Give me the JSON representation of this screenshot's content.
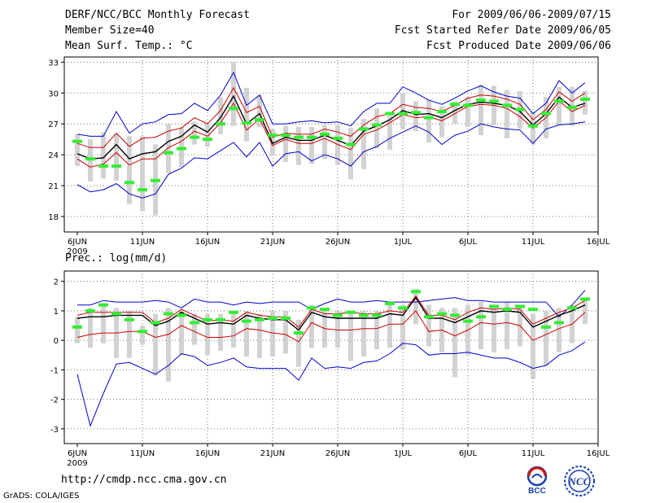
{
  "header": {
    "title": "DERF/NCC/BCC Monthly Forecast",
    "member": "Member Size=40",
    "variable": "Mean Surf. Temp.: °C",
    "range": "For 2009/06/06-2009/07/15",
    "started": "Fcst Started Refer Date 2009/06/05",
    "produced": "Fcst Produced Date 2009/06/06"
  },
  "prec_label": "Prec.: log(mm/d)",
  "footer": {
    "url": "http://cmdp.ncc.cma.gov.cn",
    "grads": "GrADS: COLA/IGES"
  },
  "logos": {
    "bcc": "BCC",
    "ncc": "NCC"
  },
  "colors": {
    "mean": "#000000",
    "inner": "#cc0000",
    "outer": "#0000cc",
    "box": "#d2d2d2",
    "marker": "#33ee33"
  },
  "chart_data": [
    {
      "type": "line",
      "title": "Mean Surf. Temp.: °C",
      "xlabel": "",
      "ylabel": "°C",
      "x": [
        1,
        2,
        3,
        4,
        5,
        6,
        7,
        8,
        9,
        10,
        11,
        12,
        13,
        14,
        15,
        16,
        17,
        18,
        19,
        20,
        21,
        22,
        23,
        24,
        25,
        26,
        27,
        28,
        29,
        30,
        31,
        32,
        33,
        34,
        35,
        36,
        37,
        38,
        39,
        40
      ],
      "x_tick_labels": [
        "6JUN\n2009",
        "11JUN",
        "16JUN",
        "21JUN",
        "26JUN",
        "1JUL",
        "6JUL",
        "11JUL",
        "16JUL"
      ],
      "ylim": [
        16.5,
        33.5
      ],
      "y_ticks": [
        18,
        21,
        24,
        27,
        30,
        33
      ],
      "series": [
        {
          "name": "upper",
          "values": [
            26.0,
            25.8,
            25.8,
            28.2,
            26.1,
            27.0,
            27.2,
            27.9,
            28.0,
            29.0,
            28.3,
            29.8,
            32.0,
            28.8,
            29.8,
            27.0,
            27.0,
            27.2,
            27.3,
            27.1,
            27.2,
            26.8,
            28.2,
            29.0,
            29.0,
            30.6,
            30.0,
            29.3,
            28.9,
            29.5,
            30.2,
            30.7,
            30.1,
            29.7,
            29.5,
            28.0,
            29.0,
            31.2,
            30.0,
            31.0
          ]
        },
        {
          "name": "upper_inner",
          "values": [
            25.1,
            24.7,
            24.7,
            26.1,
            24.8,
            25.6,
            25.7,
            26.3,
            26.6,
            27.6,
            27.0,
            28.3,
            30.5,
            28.1,
            28.7,
            25.7,
            26.1,
            26.0,
            26.0,
            26.5,
            26.2,
            25.8,
            26.9,
            27.7,
            28.0,
            28.9,
            28.6,
            28.5,
            28.2,
            28.8,
            29.5,
            29.8,
            29.7,
            29.4,
            28.9,
            27.4,
            28.4,
            30.1,
            29.2,
            30.0
          ]
        },
        {
          "name": "mean",
          "values": [
            24.1,
            23.6,
            23.7,
            25.0,
            23.6,
            24.1,
            24.3,
            25.3,
            25.8,
            26.9,
            26.2,
            27.6,
            29.7,
            27.0,
            28.0,
            25.1,
            25.7,
            25.4,
            25.4,
            25.9,
            25.4,
            24.9,
            26.3,
            26.8,
            27.4,
            28.3,
            27.9,
            28.0,
            27.6,
            28.3,
            28.9,
            29.1,
            29.0,
            28.8,
            28.2,
            26.9,
            28.0,
            29.6,
            28.6,
            29.0
          ]
        },
        {
          "name": "lower_inner",
          "values": [
            23.6,
            22.8,
            23.1,
            24.2,
            23.0,
            23.6,
            23.6,
            24.7,
            25.3,
            26.3,
            25.8,
            27.1,
            29.0,
            26.4,
            27.5,
            24.9,
            25.5,
            25.1,
            25.1,
            25.6,
            25.0,
            24.5,
            26.0,
            26.4,
            27.1,
            27.9,
            27.6,
            27.7,
            27.3,
            28.0,
            28.7,
            28.9,
            28.8,
            28.5,
            27.7,
            26.6,
            27.6,
            29.2,
            28.2,
            28.8
          ]
        },
        {
          "name": "lower",
          "values": [
            21.1,
            20.4,
            20.6,
            21.2,
            20.2,
            19.8,
            20.2,
            22.1,
            22.7,
            23.7,
            23.6,
            24.4,
            25.2,
            23.8,
            25.2,
            22.9,
            24.1,
            24.3,
            23.4,
            24.0,
            23.6,
            22.9,
            24.3,
            24.8,
            25.6,
            26.2,
            26.8,
            26.2,
            25.0,
            25.9,
            26.3,
            27.0,
            26.7,
            26.5,
            26.4,
            25.1,
            26.5,
            26.9,
            27.0,
            27.2
          ]
        },
        {
          "name": "observed",
          "values": [
            25.3,
            23.6,
            22.9,
            22.9,
            21.3,
            20.6,
            21.5,
            24.2,
            24.6,
            25.7,
            25.5,
            27.0,
            28.5,
            27.1,
            27.4,
            25.9,
            25.9,
            25.7,
            25.7,
            26.0,
            25.6,
            25.0,
            26.5,
            26.9,
            28.0,
            28.0,
            28.1,
            27.6,
            28.2,
            28.9,
            28.8,
            29.3,
            29.2,
            28.8,
            28.4,
            26.8,
            28.0,
            29.2,
            28.6,
            29.4
          ]
        },
        {
          "name": "box_high",
          "values": [
            26.0,
            25.5,
            26.2,
            26.0,
            25.8,
            25.8,
            25.0,
            27.0,
            26.7,
            27.2,
            27.0,
            29.6,
            33.0,
            30.5,
            29.8,
            26.5,
            26.8,
            26.7,
            26.7,
            26.9,
            26.9,
            26.6,
            27.5,
            28.5,
            28.0,
            30.0,
            29.2,
            29.4,
            28.7,
            29.2,
            29.6,
            30.8,
            30.7,
            30.3,
            30.2,
            28.2,
            29.6,
            30.6,
            30.6,
            30.2
          ]
        },
        {
          "name": "box_low",
          "values": [
            22.9,
            21.4,
            21.7,
            21.5,
            19.2,
            18.5,
            18.1,
            22.2,
            22.8,
            25.0,
            24.8,
            26.0,
            26.8,
            25.3,
            26.7,
            23.9,
            23.3,
            23.0,
            23.1,
            23.6,
            23.0,
            21.6,
            22.6,
            24.6,
            24.5,
            26.5,
            26.3,
            25.2,
            25.7,
            27.0,
            26.7,
            25.9,
            26.9,
            25.6,
            26.5,
            25.0,
            25.6,
            26.9,
            26.8,
            27.9
          ]
        }
      ]
    },
    {
      "type": "line",
      "title": "Prec.: log(mm/d)",
      "xlabel": "",
      "ylabel": "log(mm/d)",
      "x": [
        1,
        2,
        3,
        4,
        5,
        6,
        7,
        8,
        9,
        10,
        11,
        12,
        13,
        14,
        15,
        16,
        17,
        18,
        19,
        20,
        21,
        22,
        23,
        24,
        25,
        26,
        27,
        28,
        29,
        30,
        31,
        32,
        33,
        34,
        35,
        36,
        37,
        38,
        39,
        40
      ],
      "x_tick_labels": [
        "6JUN\n2009",
        "11JUN",
        "16JUN",
        "21JUN",
        "26JUN",
        "1JUL",
        "6JUL",
        "11JUL",
        "16JUL"
      ],
      "ylim": [
        -3.5,
        2.35
      ],
      "y_ticks": [
        -3,
        -2,
        -1,
        0,
        1,
        2
      ],
      "series": [
        {
          "name": "upper",
          "values": [
            1.2,
            1.2,
            1.35,
            1.3,
            1.3,
            1.3,
            1.35,
            1.3,
            1.1,
            1.4,
            1.3,
            1.3,
            1.2,
            1.3,
            1.25,
            1.3,
            1.3,
            1.3,
            1.05,
            1.25,
            1.4,
            1.3,
            1.3,
            1.35,
            1.3,
            1.3,
            1.3,
            1.35,
            1.4,
            1.45,
            1.35,
            1.35,
            1.3,
            1.3,
            1.3,
            1.3,
            1.3,
            0.8,
            1.2,
            1.7
          ]
        },
        {
          "name": "upper_inner",
          "values": [
            0.85,
            0.95,
            0.95,
            0.95,
            0.95,
            0.95,
            0.6,
            0.75,
            1.05,
            0.85,
            0.65,
            0.7,
            0.65,
            0.95,
            0.85,
            0.8,
            0.8,
            0.45,
            1.05,
            0.9,
            0.9,
            0.95,
            0.9,
            0.9,
            1.0,
            0.95,
            1.5,
            0.85,
            0.85,
            0.7,
            0.95,
            1.1,
            1.05,
            1.1,
            1.05,
            0.55,
            0.75,
            0.95,
            1.1,
            1.35
          ]
        },
        {
          "name": "mean",
          "values": [
            0.75,
            0.8,
            0.8,
            0.85,
            0.85,
            0.85,
            0.5,
            0.65,
            0.95,
            0.75,
            0.55,
            0.6,
            0.55,
            0.85,
            0.75,
            0.7,
            0.7,
            0.35,
            0.95,
            0.8,
            0.75,
            0.75,
            0.75,
            0.75,
            0.9,
            0.85,
            1.45,
            0.75,
            0.75,
            0.6,
            0.8,
            1.0,
            0.95,
            1.0,
            0.95,
            0.45,
            0.65,
            0.85,
            1.0,
            1.2
          ]
        },
        {
          "name": "lower_inner",
          "values": [
            0.1,
            0.2,
            0.25,
            0.25,
            0.3,
            0.3,
            0.1,
            0.2,
            0.5,
            0.3,
            0.1,
            0.1,
            0.15,
            0.4,
            0.35,
            0.25,
            0.2,
            -0.05,
            0.6,
            0.4,
            0.35,
            0.35,
            0.4,
            0.4,
            0.55,
            0.55,
            1.0,
            0.3,
            0.35,
            0.15,
            0.35,
            0.6,
            0.55,
            0.6,
            0.5,
            0.0,
            0.2,
            0.4,
            0.55,
            0.95
          ]
        },
        {
          "name": "lower",
          "values": [
            -1.15,
            -2.9,
            -1.8,
            -0.8,
            -0.75,
            -0.95,
            -1.15,
            -0.85,
            -0.45,
            -0.55,
            -0.85,
            -0.75,
            -0.6,
            -0.9,
            -0.95,
            -0.95,
            -0.95,
            -1.35,
            -0.6,
            -0.95,
            -0.9,
            -0.95,
            -0.75,
            -0.7,
            -0.45,
            -0.1,
            -0.15,
            -0.5,
            -0.45,
            -0.45,
            -0.4,
            -0.5,
            -0.6,
            -0.6,
            -0.75,
            -0.95,
            -0.85,
            -0.5,
            -0.35,
            -0.05
          ]
        },
        {
          "name": "observed",
          "values": [
            0.45,
            1.0,
            1.2,
            0.9,
            0.7,
            0.3,
            0.6,
            0.9,
            0.85,
            0.6,
            0.7,
            0.7,
            0.95,
            0.65,
            0.7,
            0.75,
            0.75,
            0.25,
            1.1,
            1.05,
            0.85,
            0.95,
            0.85,
            0.85,
            1.25,
            1.1,
            1.65,
            0.8,
            0.9,
            0.85,
            0.65,
            0.8,
            1.15,
            1.05,
            1.15,
            1.05,
            0.45,
            0.6,
            1.1,
            1.4
          ]
        },
        {
          "name": "box_high",
          "values": [
            0.8,
            1.1,
            1.25,
            1.1,
            1.0,
            0.5,
            0.9,
            1.1,
            1.0,
            0.9,
            0.9,
            0.9,
            1.0,
            1.0,
            0.9,
            1.0,
            1.0,
            0.7,
            1.2,
            1.0,
            1.0,
            1.0,
            1.0,
            1.0,
            1.2,
            1.2,
            1.75,
            1.2,
            1.1,
            1.1,
            1.2,
            1.3,
            1.2,
            1.3,
            1.2,
            0.9,
            1.0,
            1.1,
            1.2,
            1.45
          ]
        },
        {
          "name": "box_low",
          "values": [
            -0.1,
            -0.25,
            -0.1,
            -0.6,
            -0.6,
            -0.15,
            -1.2,
            -1.4,
            -0.5,
            -0.15,
            -0.5,
            -0.35,
            -0.25,
            -0.55,
            -0.6,
            -0.55,
            -0.45,
            -0.9,
            -0.25,
            -0.25,
            -0.25,
            -0.7,
            -0.55,
            -0.3,
            -0.25,
            -0.3,
            0.55,
            -0.2,
            -0.4,
            -1.25,
            -0.5,
            -0.3,
            -0.4,
            -0.3,
            -0.2,
            -1.3,
            -0.85,
            -0.4,
            -0.1,
            0.55
          ]
        }
      ]
    }
  ]
}
